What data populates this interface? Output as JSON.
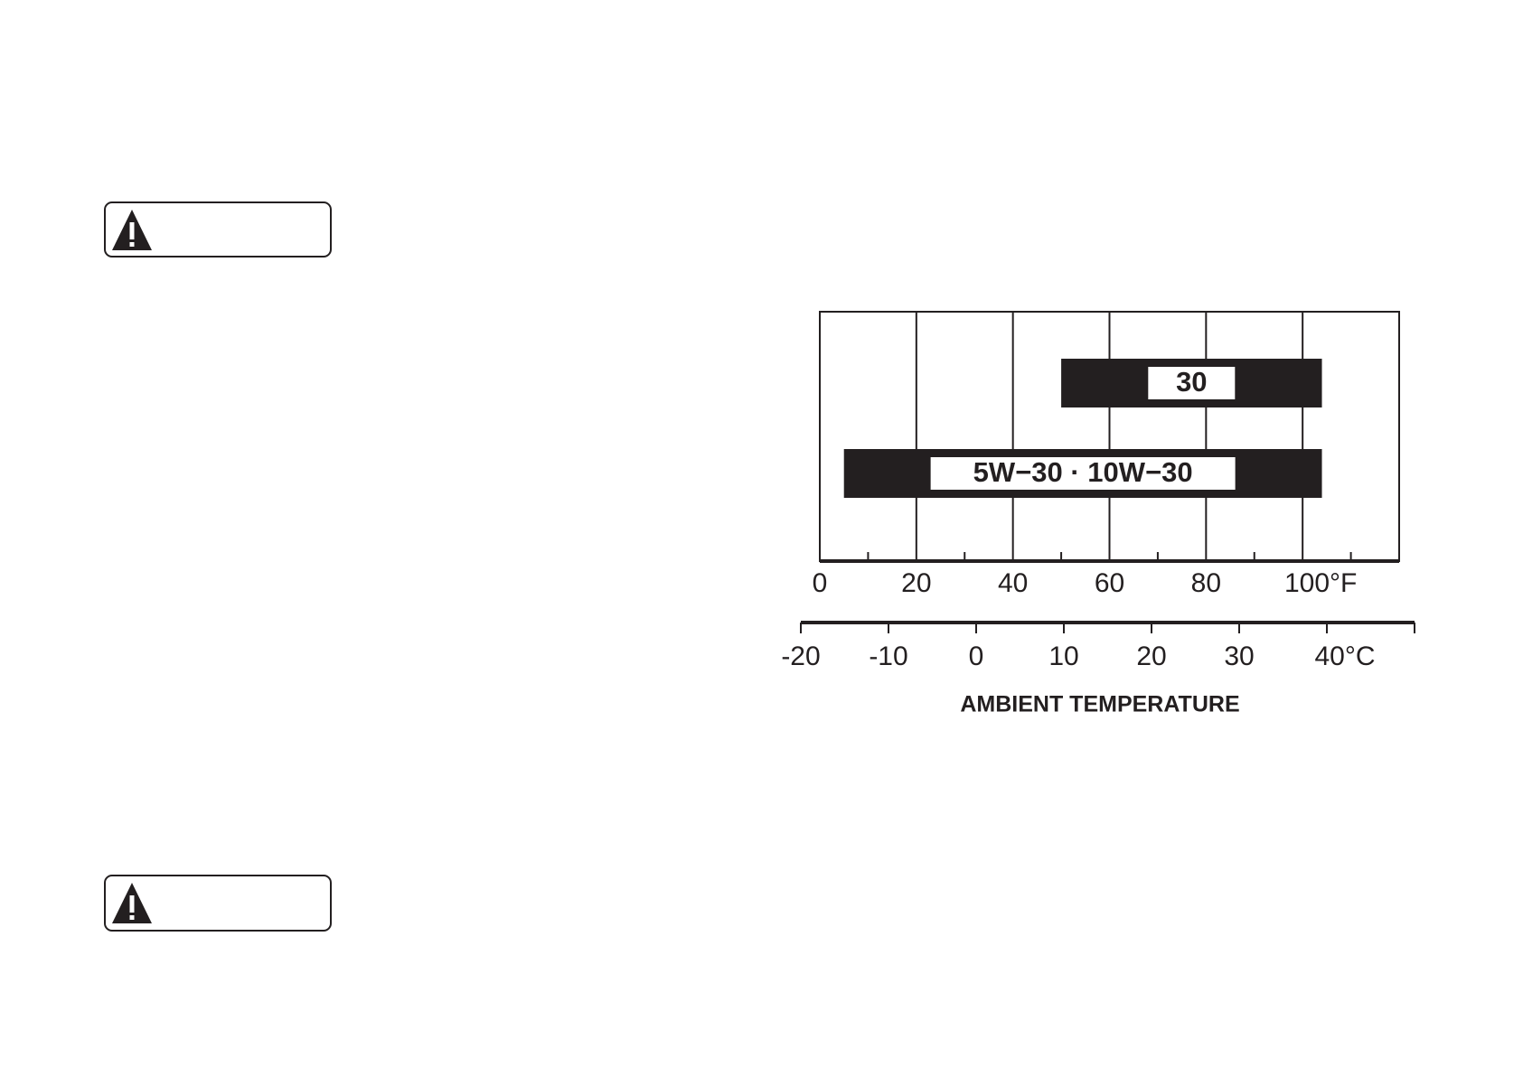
{
  "chart_data": {
    "type": "range-bar",
    "categories": [
      "30",
      "5W−30 · 10W−30"
    ],
    "low": [
      50,
      5
    ],
    "high": [
      104,
      104
    ],
    "color": "#231f20",
    "xlim": [
      0,
      120
    ],
    "xticks": [
      0,
      20,
      40,
      60,
      80,
      {
        "value": 100,
        "label": "100°F"
      }
    ],
    "xminorticks": [
      10,
      30,
      50,
      70,
      90,
      110
    ],
    "x2lim": [
      -20,
      50
    ],
    "x2ticks": [
      -20,
      -10,
      0,
      10,
      20,
      30,
      {
        "value": 40,
        "label": "40°C"
      }
    ],
    "xlabel": "AMBIENT TEMPERATURE",
    "grid": true
  }
}
